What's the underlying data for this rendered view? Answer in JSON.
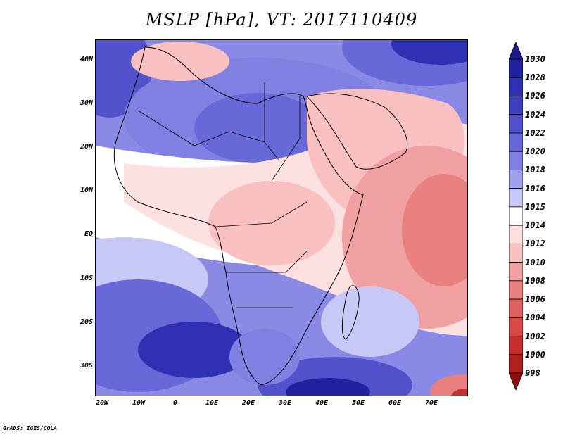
{
  "title": "MSLP [hPa], VT: 2017110409",
  "credit": "GrADS: IGES/COLA",
  "lat_labels": [
    "40N",
    "30N",
    "20N",
    "10N",
    "EQ",
    "10S",
    "20S",
    "30S"
  ],
  "lon_labels": [
    "20W",
    "10W",
    "0",
    "10E",
    "20E",
    "30E",
    "40E",
    "50E",
    "60E",
    "70E"
  ],
  "colorbar": {
    "levels": [
      "1030",
      "1028",
      "1026",
      "1024",
      "1022",
      "1020",
      "1018",
      "1016",
      "1015",
      "1014",
      "1012",
      "1010",
      "1008",
      "1006",
      "1004",
      "1002",
      "1000",
      "998"
    ],
    "colors": [
      "#1a1a8c",
      "#2222a0",
      "#3030b4",
      "#4040c0",
      "#5252cc",
      "#6868d8",
      "#8080e2",
      "#a0a0ec",
      "#c8c8f6",
      "#ffffff",
      "#fde0e0",
      "#f8c0c0",
      "#f0a0a0",
      "#e88080",
      "#e06060",
      "#d84848",
      "#c83030",
      "#b02020",
      "#901010"
    ]
  }
}
